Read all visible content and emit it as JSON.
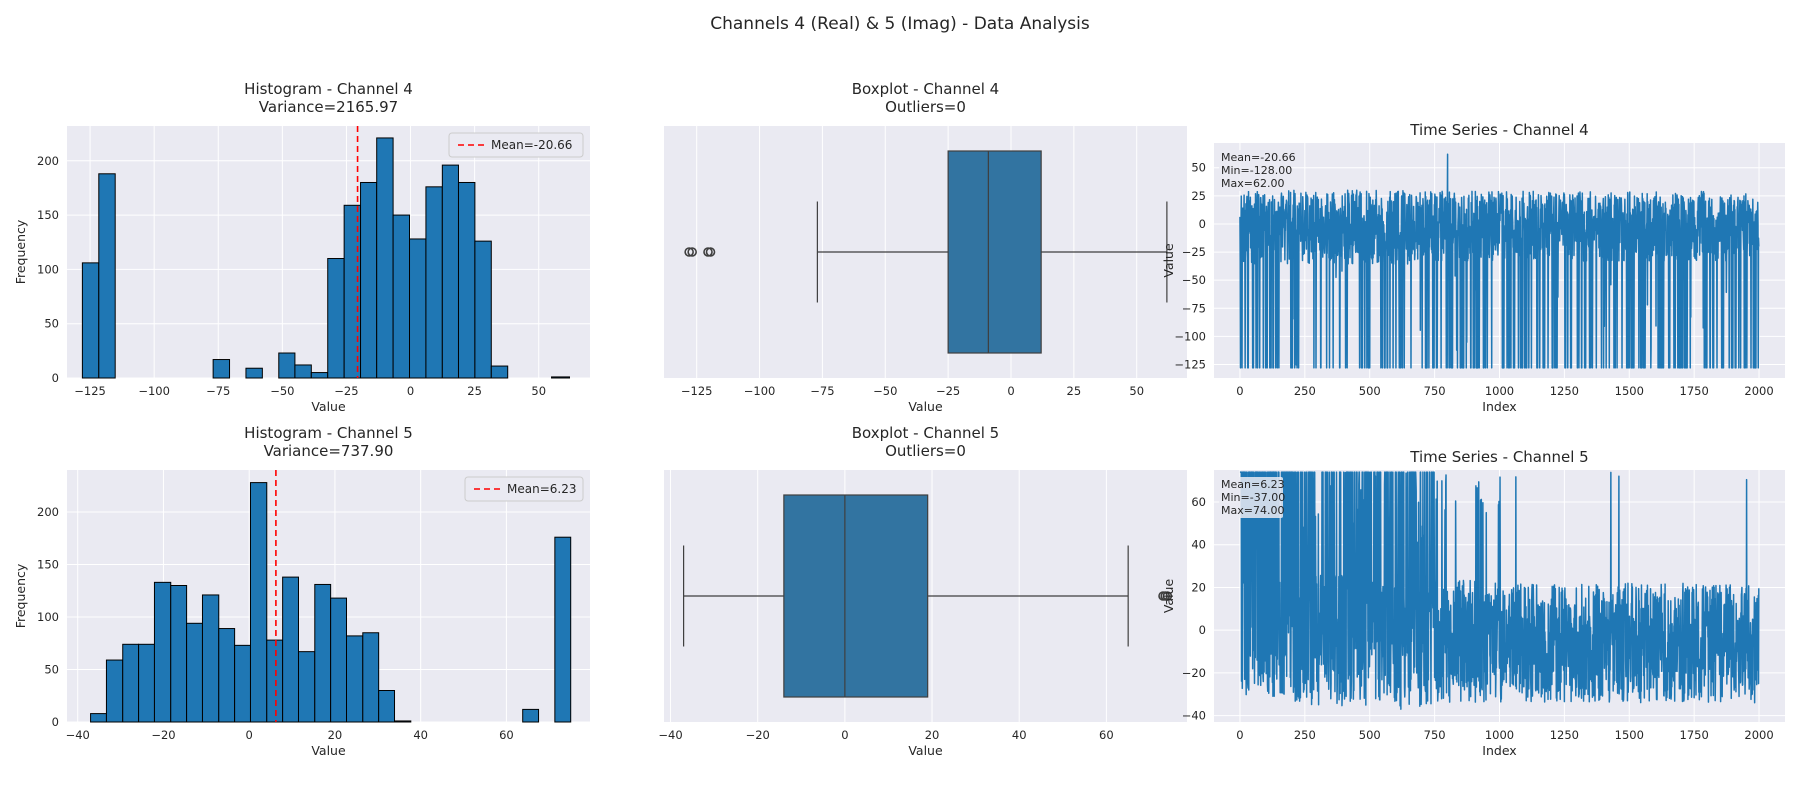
{
  "figure": {
    "title": "Channels 4 (Real) & 5 (Imag) - Data Analysis"
  },
  "colors": {
    "panel_bg": "#eaeaf2",
    "grid": "#ffffff",
    "bar": "#1f77b4",
    "box": "#3274a1",
    "line": "#1f77b4",
    "mean_line": "#ff0000",
    "edge": "#000000"
  },
  "chart_data": [
    {
      "id": "hist4",
      "type": "bar",
      "subtype": "histogram",
      "title": "Histogram - Channel 4",
      "subtitle": "Variance=2165.97",
      "xlabel": "Value",
      "ylabel": "Frequency",
      "xlim": [
        -134,
        70
      ],
      "ylim": [
        0,
        232
      ],
      "xticks": [
        -125,
        -100,
        -75,
        -50,
        -25,
        0,
        25,
        50
      ],
      "yticks": [
        0,
        50,
        100,
        150,
        200
      ],
      "bin_edges": [
        -128,
        -121.6,
        -115.2,
        -108.9,
        -102.5,
        -96.1,
        -89.7,
        -83.3,
        -77.0,
        -70.6,
        -64.2,
        -57.8,
        -51.4,
        -45.1,
        -38.7,
        -32.3,
        -25.9,
        -19.5,
        -13.2,
        -6.8,
        -0.4,
        6.0,
        12.4,
        18.7,
        25.1,
        31.5,
        37.9,
        44.3,
        50.6,
        55.0,
        62.0
      ],
      "counts": [
        106,
        188,
        0,
        0,
        0,
        0,
        0,
        0,
        17,
        0,
        9,
        0,
        23,
        12,
        5,
        110,
        159,
        180,
        221,
        150,
        128,
        176,
        196,
        180,
        126,
        11,
        0,
        0,
        0,
        1
      ],
      "mean": -20.66,
      "legend": "Mean=-20.66",
      "legend_position": "upper right"
    },
    {
      "id": "box4",
      "type": "boxplot",
      "title": "Boxplot - Channel 4",
      "subtitle": "Outliers=0",
      "xlabel": "Value",
      "xlim": [
        -138,
        70
      ],
      "xticks": [
        -125,
        -100,
        -75,
        -50,
        -25,
        0,
        25,
        50
      ],
      "whisker_low": -77,
      "q1": -25,
      "median": -9,
      "q3": 12,
      "whisker_high": 62,
      "fliers": [
        -128,
        -126.8,
        -120.5,
        -119.5
      ]
    },
    {
      "id": "ts4",
      "type": "line",
      "subtype": "time-series",
      "title": "Time Series - Channel 4",
      "xlabel": "Index",
      "ylabel": "Value",
      "xlim": [
        -100,
        2100
      ],
      "ylim": [
        -137,
        72
      ],
      "xticks": [
        0,
        250,
        500,
        750,
        1000,
        1250,
        1500,
        1750,
        2000
      ],
      "yticks": [
        -125,
        -100,
        -75,
        -50,
        -25,
        0,
        25,
        50
      ],
      "n_points": 2000,
      "mean": -20.66,
      "min": -128.0,
      "max": 62.0,
      "stats": [
        "Mean=-20.66",
        "Min=-128.00",
        "Max=62.00"
      ]
    },
    {
      "id": "hist5",
      "type": "bar",
      "subtype": "histogram",
      "title": "Histogram - Channel 5",
      "subtitle": "Variance=737.90",
      "xlabel": "Value",
      "ylabel": "Frequency",
      "xlim": [
        -42.5,
        79.5
      ],
      "ylim": [
        0,
        240
      ],
      "xticks": [
        -40,
        -20,
        0,
        20,
        40,
        60
      ],
      "yticks": [
        0,
        50,
        100,
        150,
        200
      ],
      "bin_edges": [
        -37,
        -33.3,
        -29.5,
        -25.8,
        -22.1,
        -18.3,
        -14.6,
        -10.9,
        -7.1,
        -3.4,
        0.3,
        4.1,
        7.8,
        11.5,
        15.3,
        19.0,
        22.7,
        26.5,
        30.2,
        33.9,
        37.7,
        41.4,
        45.1,
        48.9,
        52.6,
        56.3,
        60.1,
        63.8,
        67.5,
        71.3,
        75.0
      ],
      "counts": [
        8,
        59,
        74,
        74,
        133,
        130,
        94,
        121,
        89,
        73,
        228,
        78,
        138,
        67,
        131,
        118,
        82,
        85,
        30,
        1,
        0,
        0,
        0,
        0,
        0,
        0,
        0,
        12,
        0,
        176
      ],
      "mean": 6.23,
      "legend": "Mean=6.23",
      "legend_position": "upper right"
    },
    {
      "id": "box5",
      "type": "boxplot",
      "title": "Boxplot - Channel 5",
      "subtitle": "Outliers=0",
      "xlabel": "Value",
      "xlim": [
        -41.5,
        78.5
      ],
      "xticks": [
        -40,
        -20,
        0,
        20,
        40,
        60
      ],
      "whisker_low": -37,
      "q1": -14,
      "median": 0,
      "q3": 19,
      "whisker_high": 65,
      "fliers": [
        73,
        73.5,
        74
      ]
    },
    {
      "id": "ts5",
      "type": "line",
      "subtype": "time-series",
      "title": "Time Series - Channel 5",
      "xlabel": "Index",
      "ylabel": "Value",
      "xlim": [
        -100,
        2100
      ],
      "ylim": [
        -43,
        75
      ],
      "xticks": [
        0,
        250,
        500,
        750,
        1000,
        1250,
        1500,
        1750,
        2000
      ],
      "yticks": [
        -40,
        -20,
        0,
        20,
        40,
        60
      ],
      "n_points": 2000,
      "mean": 6.23,
      "min": -37.0,
      "max": 74.0,
      "stats": [
        "Mean=6.23",
        "Min=-37.00",
        "Max=74.00"
      ]
    }
  ]
}
